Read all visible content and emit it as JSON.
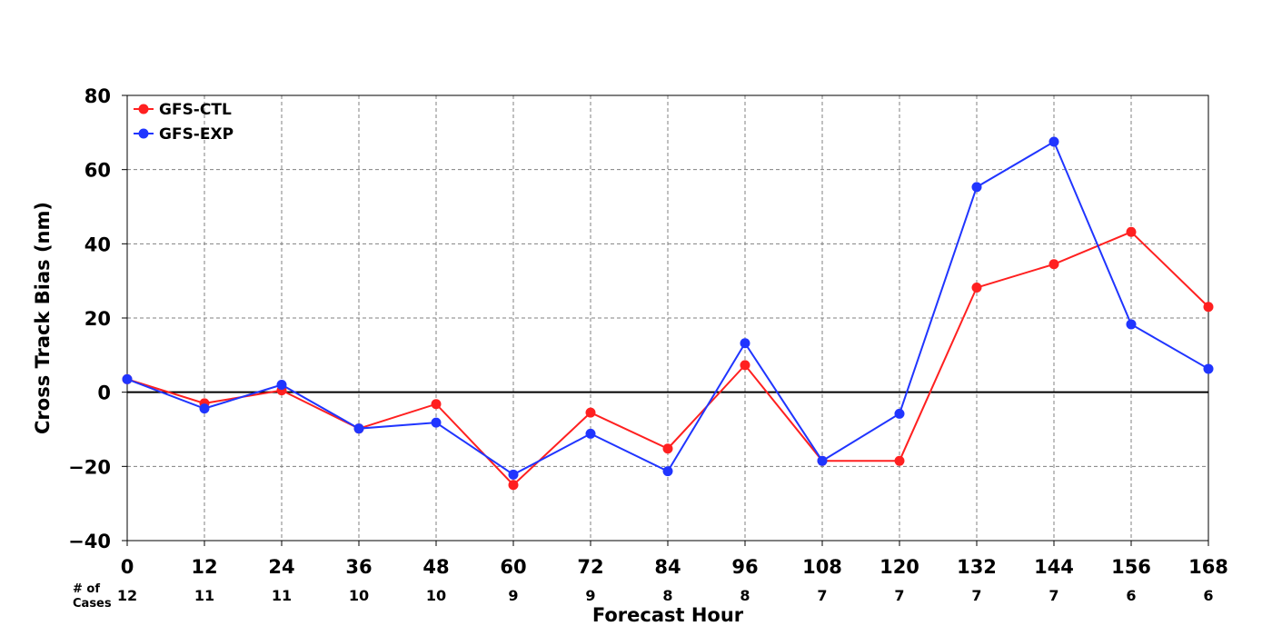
{
  "chart_data": {
    "type": "line",
    "title": "",
    "xlabel": "Forecast Hour",
    "ylabel": "Cross Track Bias (nm)",
    "x": [
      0,
      12,
      24,
      36,
      48,
      60,
      72,
      84,
      96,
      108,
      120,
      132,
      144,
      156,
      168
    ],
    "x_tick_labels": [
      "0",
      "12",
      "24",
      "36",
      "48",
      "60",
      "72",
      "84",
      "96",
      "108",
      "120",
      "132",
      "144",
      "156",
      "168"
    ],
    "xlim": [
      0,
      168
    ],
    "ylim": [
      -40,
      80
    ],
    "y_ticks": [
      -40,
      -20,
      0,
      20,
      40,
      60,
      80
    ],
    "y_tick_labels": [
      "−40",
      "−20",
      "0",
      "20",
      "40",
      "60",
      "80"
    ],
    "grid": true,
    "legend_position": "top-left",
    "zero_line": true,
    "cases_label_line1": "# of",
    "cases_label_line2": "Cases",
    "cases": [
      "12",
      "11",
      "11",
      "10",
      "10",
      "9",
      "9",
      "8",
      "8",
      "7",
      "7",
      "7",
      "7",
      "6",
      "6"
    ],
    "series": [
      {
        "name": "GFS-CTL",
        "color": "#ff2020",
        "values": [
          3.5,
          -3,
          0.5,
          -9.8,
          -3.2,
          -25,
          -5.5,
          -15.2,
          7.3,
          -18.5,
          -18.5,
          28.2,
          34.5,
          43.2,
          23
        ]
      },
      {
        "name": "GFS-EXP",
        "color": "#2035ff",
        "values": [
          3.5,
          -4.4,
          2,
          -9.8,
          -8.2,
          -22.2,
          -11.2,
          -21.3,
          13.2,
          -18.5,
          -5.8,
          55.3,
          67.5,
          18.3,
          6.3
        ]
      }
    ]
  }
}
